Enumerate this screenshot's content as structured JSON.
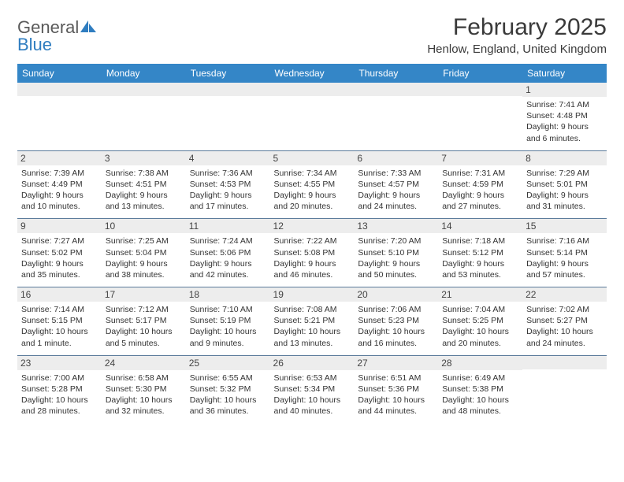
{
  "logo": {
    "word1": "General",
    "word2": "Blue"
  },
  "title": "February 2025",
  "location": "Henlow, England, United Kingdom",
  "colors": {
    "header_bg": "#3486c7",
    "header_text": "#ffffff",
    "date_bg": "#ededed",
    "border": "#5a7a9a",
    "body_text": "#333333",
    "logo_gray": "#5a5a5a",
    "logo_blue": "#2f7dc0",
    "page_bg": "#ffffff"
  },
  "dayNames": [
    "Sunday",
    "Monday",
    "Tuesday",
    "Wednesday",
    "Thursday",
    "Friday",
    "Saturday"
  ],
  "weeks": [
    [
      {
        "date": "",
        "sunrise": "",
        "sunset": "",
        "daylight": ""
      },
      {
        "date": "",
        "sunrise": "",
        "sunset": "",
        "daylight": ""
      },
      {
        "date": "",
        "sunrise": "",
        "sunset": "",
        "daylight": ""
      },
      {
        "date": "",
        "sunrise": "",
        "sunset": "",
        "daylight": ""
      },
      {
        "date": "",
        "sunrise": "",
        "sunset": "",
        "daylight": ""
      },
      {
        "date": "",
        "sunrise": "",
        "sunset": "",
        "daylight": ""
      },
      {
        "date": "1",
        "sunrise": "Sunrise: 7:41 AM",
        "sunset": "Sunset: 4:48 PM",
        "daylight": "Daylight: 9 hours and 6 minutes."
      }
    ],
    [
      {
        "date": "2",
        "sunrise": "Sunrise: 7:39 AM",
        "sunset": "Sunset: 4:49 PM",
        "daylight": "Daylight: 9 hours and 10 minutes."
      },
      {
        "date": "3",
        "sunrise": "Sunrise: 7:38 AM",
        "sunset": "Sunset: 4:51 PM",
        "daylight": "Daylight: 9 hours and 13 minutes."
      },
      {
        "date": "4",
        "sunrise": "Sunrise: 7:36 AM",
        "sunset": "Sunset: 4:53 PM",
        "daylight": "Daylight: 9 hours and 17 minutes."
      },
      {
        "date": "5",
        "sunrise": "Sunrise: 7:34 AM",
        "sunset": "Sunset: 4:55 PM",
        "daylight": "Daylight: 9 hours and 20 minutes."
      },
      {
        "date": "6",
        "sunrise": "Sunrise: 7:33 AM",
        "sunset": "Sunset: 4:57 PM",
        "daylight": "Daylight: 9 hours and 24 minutes."
      },
      {
        "date": "7",
        "sunrise": "Sunrise: 7:31 AM",
        "sunset": "Sunset: 4:59 PM",
        "daylight": "Daylight: 9 hours and 27 minutes."
      },
      {
        "date": "8",
        "sunrise": "Sunrise: 7:29 AM",
        "sunset": "Sunset: 5:01 PM",
        "daylight": "Daylight: 9 hours and 31 minutes."
      }
    ],
    [
      {
        "date": "9",
        "sunrise": "Sunrise: 7:27 AM",
        "sunset": "Sunset: 5:02 PM",
        "daylight": "Daylight: 9 hours and 35 minutes."
      },
      {
        "date": "10",
        "sunrise": "Sunrise: 7:25 AM",
        "sunset": "Sunset: 5:04 PM",
        "daylight": "Daylight: 9 hours and 38 minutes."
      },
      {
        "date": "11",
        "sunrise": "Sunrise: 7:24 AM",
        "sunset": "Sunset: 5:06 PM",
        "daylight": "Daylight: 9 hours and 42 minutes."
      },
      {
        "date": "12",
        "sunrise": "Sunrise: 7:22 AM",
        "sunset": "Sunset: 5:08 PM",
        "daylight": "Daylight: 9 hours and 46 minutes."
      },
      {
        "date": "13",
        "sunrise": "Sunrise: 7:20 AM",
        "sunset": "Sunset: 5:10 PM",
        "daylight": "Daylight: 9 hours and 50 minutes."
      },
      {
        "date": "14",
        "sunrise": "Sunrise: 7:18 AM",
        "sunset": "Sunset: 5:12 PM",
        "daylight": "Daylight: 9 hours and 53 minutes."
      },
      {
        "date": "15",
        "sunrise": "Sunrise: 7:16 AM",
        "sunset": "Sunset: 5:14 PM",
        "daylight": "Daylight: 9 hours and 57 minutes."
      }
    ],
    [
      {
        "date": "16",
        "sunrise": "Sunrise: 7:14 AM",
        "sunset": "Sunset: 5:15 PM",
        "daylight": "Daylight: 10 hours and 1 minute."
      },
      {
        "date": "17",
        "sunrise": "Sunrise: 7:12 AM",
        "sunset": "Sunset: 5:17 PM",
        "daylight": "Daylight: 10 hours and 5 minutes."
      },
      {
        "date": "18",
        "sunrise": "Sunrise: 7:10 AM",
        "sunset": "Sunset: 5:19 PM",
        "daylight": "Daylight: 10 hours and 9 minutes."
      },
      {
        "date": "19",
        "sunrise": "Sunrise: 7:08 AM",
        "sunset": "Sunset: 5:21 PM",
        "daylight": "Daylight: 10 hours and 13 minutes."
      },
      {
        "date": "20",
        "sunrise": "Sunrise: 7:06 AM",
        "sunset": "Sunset: 5:23 PM",
        "daylight": "Daylight: 10 hours and 16 minutes."
      },
      {
        "date": "21",
        "sunrise": "Sunrise: 7:04 AM",
        "sunset": "Sunset: 5:25 PM",
        "daylight": "Daylight: 10 hours and 20 minutes."
      },
      {
        "date": "22",
        "sunrise": "Sunrise: 7:02 AM",
        "sunset": "Sunset: 5:27 PM",
        "daylight": "Daylight: 10 hours and 24 minutes."
      }
    ],
    [
      {
        "date": "23",
        "sunrise": "Sunrise: 7:00 AM",
        "sunset": "Sunset: 5:28 PM",
        "daylight": "Daylight: 10 hours and 28 minutes."
      },
      {
        "date": "24",
        "sunrise": "Sunrise: 6:58 AM",
        "sunset": "Sunset: 5:30 PM",
        "daylight": "Daylight: 10 hours and 32 minutes."
      },
      {
        "date": "25",
        "sunrise": "Sunrise: 6:55 AM",
        "sunset": "Sunset: 5:32 PM",
        "daylight": "Daylight: 10 hours and 36 minutes."
      },
      {
        "date": "26",
        "sunrise": "Sunrise: 6:53 AM",
        "sunset": "Sunset: 5:34 PM",
        "daylight": "Daylight: 10 hours and 40 minutes."
      },
      {
        "date": "27",
        "sunrise": "Sunrise: 6:51 AM",
        "sunset": "Sunset: 5:36 PM",
        "daylight": "Daylight: 10 hours and 44 minutes."
      },
      {
        "date": "28",
        "sunrise": "Sunrise: 6:49 AM",
        "sunset": "Sunset: 5:38 PM",
        "daylight": "Daylight: 10 hours and 48 minutes."
      },
      {
        "date": "",
        "sunrise": "",
        "sunset": "",
        "daylight": ""
      }
    ]
  ]
}
